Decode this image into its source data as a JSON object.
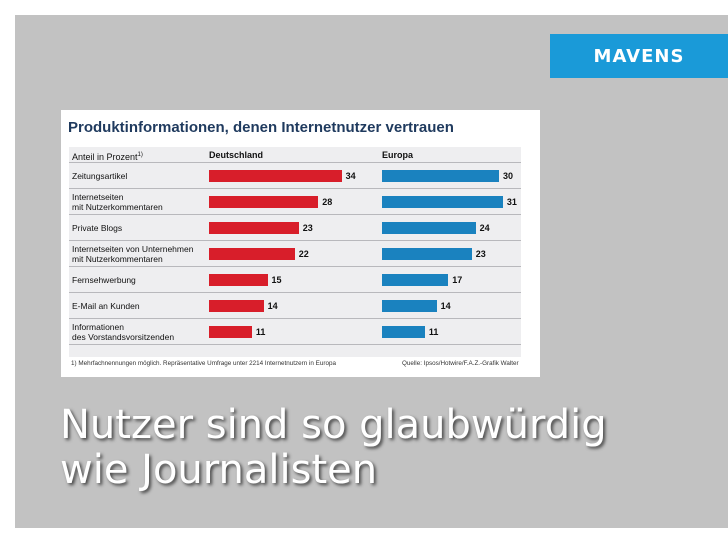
{
  "brand": "MAVENS",
  "headline": {
    "line1": "Nutzer sind so glaubwürdig",
    "line2": "wie Journalisten"
  },
  "chart_data": {
    "type": "bar",
    "title": "Produktinformationen, denen Internetnutzer vertrauen",
    "col_header_label": "Anteil in Prozent",
    "col_header_sup": "1)",
    "categories": [
      [
        "Zeitungsartikel"
      ],
      [
        "Internetseiten",
        "mit Nutzerkommentaren"
      ],
      [
        "Private Blogs"
      ],
      [
        "Internetseiten von Unternehmen",
        "mit Nutzerkommentaren"
      ],
      [
        "Fernsehwerbung"
      ],
      [
        "E-Mail an Kunden"
      ],
      [
        "Informationen",
        "des Vorstandsvorsitzenden"
      ]
    ],
    "series": [
      {
        "name": "Deutschland",
        "values": [
          34,
          28,
          23,
          22,
          15,
          14,
          11
        ],
        "color": "#d81e2a"
      },
      {
        "name": "Europa",
        "values": [
          30,
          31,
          24,
          23,
          17,
          14,
          11
        ],
        "color": "#1a82bf"
      }
    ],
    "footnote_left": "1) Mehrfachnennungen möglich. Repräsentative Umfrage unter 2214 Internetnutzern in Europa",
    "footnote_right": "Quelle: Ipsos/Hotwire/F.A.Z.-Grafik Walter"
  }
}
